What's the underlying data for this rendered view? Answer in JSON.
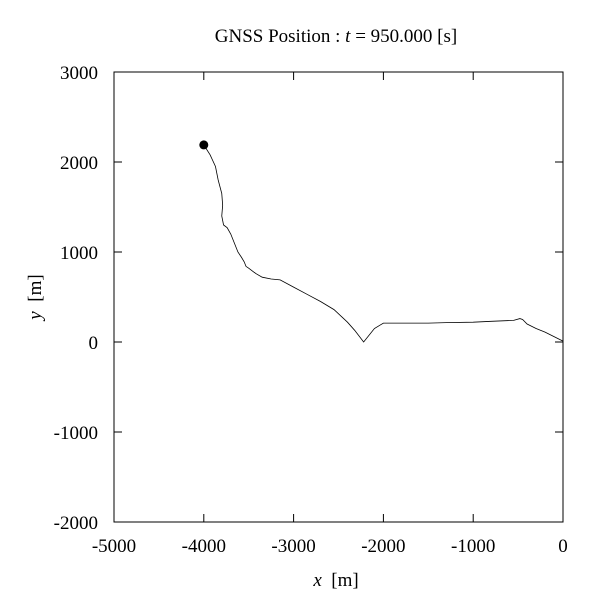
{
  "chart_data": {
    "type": "line",
    "title_prefix": "GNSS Position : ",
    "title_var": "t",
    "title_suffix": " = 950.000 [s]",
    "xlabel_var": "x",
    "xlabel_unit": "  [m]",
    "ylabel_var": "y",
    "ylabel_unit": "  [m]",
    "xlim": [
      -5000,
      0
    ],
    "ylim": [
      -2000,
      3000
    ],
    "xticks": [
      -5000,
      -4000,
      -3000,
      -2000,
      -1000,
      0
    ],
    "yticks": [
      -2000,
      -1000,
      0,
      1000,
      2000,
      3000
    ],
    "xtick_labels": [
      "-5000",
      "-4000",
      "-3000",
      "-2000",
      "-1000",
      "0"
    ],
    "ytick_labels": [
      "-2000",
      "-1000",
      "0",
      "1000",
      "2000",
      "3000"
    ],
    "grid": false,
    "line_color": "#000000",
    "marker": {
      "x": -4000,
      "y": 2190
    },
    "series": [
      {
        "x": [
          -4000,
          -3930,
          -3870,
          -3840,
          -3800,
          -3790,
          -3800,
          -3780,
          -3740,
          -3700,
          -3660,
          -3620,
          -3580,
          -3550,
          -3530,
          -3500,
          -3420,
          -3350,
          -3250,
          -3150,
          -3000,
          -2850,
          -2700,
          -2550,
          -2400,
          -2320,
          -2220,
          -2100,
          -2000,
          -1900,
          -1700,
          -1500,
          -1300,
          -1000,
          -800,
          -550,
          -480,
          -450,
          -400,
          -300,
          -200,
          -100,
          0
        ],
        "y": [
          2190,
          2080,
          1950,
          1800,
          1650,
          1520,
          1400,
          1300,
          1270,
          1200,
          1100,
          1000,
          940,
          890,
          840,
          820,
          760,
          720,
          700,
          690,
          610,
          530,
          450,
          360,
          220,
          130,
          0,
          150,
          210,
          210,
          210,
          210,
          215,
          220,
          230,
          240,
          260,
          250,
          200,
          150,
          110,
          60,
          10
        ]
      }
    ]
  }
}
